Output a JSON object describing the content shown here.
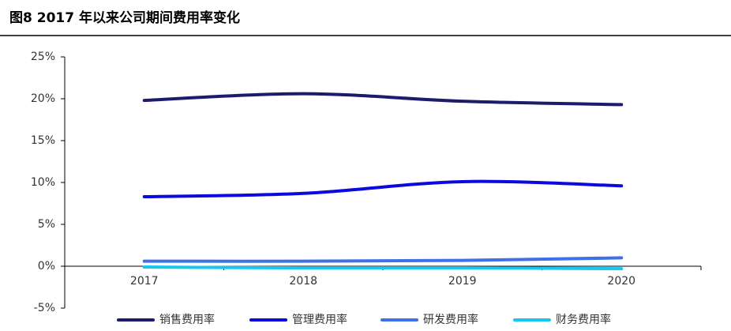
{
  "chart_data": {
    "type": "line",
    "title": "图8  2017 年以来公司期间费用率变化",
    "categories": [
      "2017",
      "2018",
      "2019",
      "2020"
    ],
    "series": [
      {
        "name": "销售费用率",
        "color": "#1c1c6b",
        "values": [
          19.8,
          20.6,
          19.7,
          19.3
        ]
      },
      {
        "name": "管理费用率",
        "color": "#0a0ae0",
        "values": [
          8.3,
          8.7,
          10.1,
          9.6
        ]
      },
      {
        "name": "研发费用率",
        "color": "#4170e6",
        "values": [
          0.6,
          0.6,
          0.7,
          1.0
        ]
      },
      {
        "name": "财务费用率",
        "color": "#14c8f0",
        "values": [
          -0.1,
          -0.2,
          -0.2,
          -0.3
        ]
      }
    ],
    "ylim": [
      -5,
      25
    ],
    "yticks": [
      {
        "value": -5,
        "label": "-5%"
      },
      {
        "value": 0,
        "label": "0%"
      },
      {
        "value": 5,
        "label": "5%"
      },
      {
        "value": 10,
        "label": "10%"
      },
      {
        "value": 15,
        "label": "15%"
      },
      {
        "value": 20,
        "label": "20%"
      },
      {
        "value": 25,
        "label": "25%"
      }
    ],
    "grid": false,
    "legend": "bottom"
  }
}
